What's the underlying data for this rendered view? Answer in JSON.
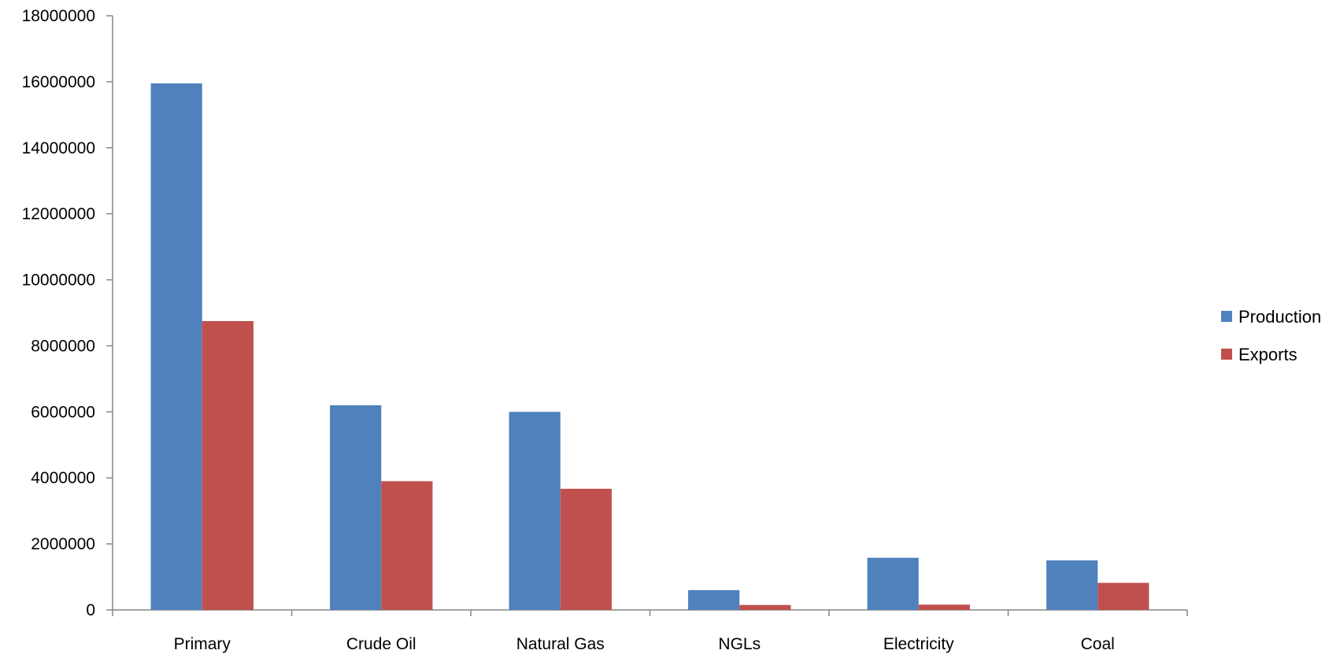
{
  "chart_data": {
    "type": "bar",
    "title": "",
    "xlabel": "",
    "ylabel": "",
    "categories": [
      "Primary",
      "Crude Oil",
      "Natural Gas",
      "NGLs",
      "Electricity",
      "Coal"
    ],
    "series": [
      {
        "name": "Production",
        "color": "#4F81BD",
        "values": [
          15950000,
          6200000,
          6000000,
          600000,
          1580000,
          1500000
        ]
      },
      {
        "name": "Exports",
        "color": "#C0504D",
        "values": [
          8750000,
          3900000,
          3670000,
          150000,
          160000,
          820000
        ]
      }
    ],
    "ylim": [
      0,
      18000000
    ],
    "yticks": [
      "0",
      "2000000",
      "4000000",
      "6000000",
      "8000000",
      "10000000",
      "12000000",
      "14000000",
      "16000000",
      "18000000"
    ],
    "grid": false,
    "legend": {
      "position": "right",
      "entries": [
        "Production",
        "Exports"
      ]
    }
  }
}
